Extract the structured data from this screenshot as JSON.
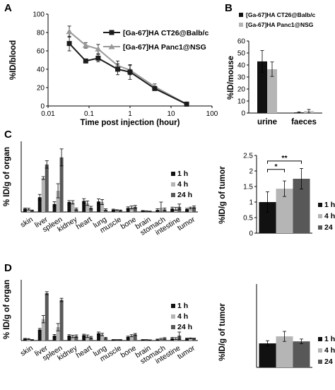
{
  "colors": {
    "black": "#111111",
    "light_gray": "#b5b5b5",
    "dark_gray": "#585858",
    "line_black": "#1c1c1c",
    "line_gray": "#999999"
  },
  "chart_data": [
    {
      "panel": "A",
      "type": "line",
      "xlabel": "Time post injection (hour)",
      "ylabel": "%ID/blood",
      "xscale": "log",
      "xlim": [
        0.01,
        100
      ],
      "ylim": [
        0,
        100
      ],
      "xticks": [
        "0.01",
        "0.1",
        "1",
        "10",
        "100"
      ],
      "yticks": [
        "0",
        "20",
        "40",
        "60",
        "80",
        "100"
      ],
      "legend_position": "top-right",
      "series": [
        {
          "name": "[Ga-67]HA CT26@Balb/c",
          "points": [
            [
              0.033,
              68,
              8
            ],
            [
              0.083,
              49,
              2
            ],
            [
              0.167,
              52,
              4
            ],
            [
              0.5,
              40,
              6
            ],
            [
              1,
              37,
              8
            ],
            [
              4,
              19,
              2
            ],
            [
              24,
              2,
              1
            ]
          ]
        },
        {
          "name": "[Ga-67]HA Panc1@NSG",
          "points": [
            [
              0.033,
              81,
              6
            ],
            [
              0.083,
              66,
              3
            ],
            [
              0.167,
              62,
              5
            ],
            [
              0.5,
              44,
              5
            ],
            [
              1,
              39,
              5
            ],
            [
              4,
              21,
              3
            ],
            [
              24,
              2,
              1
            ]
          ]
        }
      ]
    },
    {
      "panel": "B",
      "type": "bar",
      "ylabel": "%ID/mouse",
      "ylim": [
        0,
        60
      ],
      "yticks": [
        "0",
        "10",
        "20",
        "30",
        "40",
        "50",
        "60"
      ],
      "categories": [
        "urine",
        "faeces"
      ],
      "legend_position": "top",
      "series": [
        {
          "name": "[Ga-67]HA CT26@Balb/c",
          "values": [
            43,
            0.5
          ],
          "errors": [
            9,
            0.5
          ]
        },
        {
          "name": "[Ga-67]HA Panc1@NSG",
          "values": [
            36.5,
            1.5
          ],
          "errors": [
            6,
            1.5
          ]
        }
      ]
    },
    {
      "panel": "C",
      "type": "bar",
      "ylabel": "% ID/g of organ",
      "ylim": [
        0,
        25
      ],
      "categories": [
        "skin",
        "liver",
        "spleen",
        "kidney",
        "heart",
        "lung",
        "muscle",
        "bone",
        "brain",
        "stomach",
        "intestine",
        "tumor"
      ],
      "legend_position": "right",
      "series": [
        {
          "name": "1 h",
          "values": [
            1.1,
            5.2,
            2.8,
            3.5,
            3.9,
            3.7,
            0.8,
            1.4,
            0.4,
            0.7,
            1.2,
            1.0
          ],
          "errors": [
            0.3,
            1.0,
            0.8,
            0.5,
            0.8,
            0.9,
            0.2,
            0.4,
            0.1,
            0.4,
            0.5,
            0.3
          ]
        },
        {
          "name": "4 h",
          "values": [
            1.0,
            12.0,
            7.5,
            3.4,
            3.1,
            3.5,
            0.6,
            1.6,
            0.3,
            1.5,
            1.1,
            1.4
          ],
          "errors": [
            0.3,
            0.5,
            2.5,
            0.6,
            0.8,
            0.9,
            0.2,
            0.5,
            0.1,
            2.0,
            0.5,
            0.3
          ]
        },
        {
          "name": "24 h",
          "values": [
            0.5,
            16.8,
            19.3,
            1.0,
            1.5,
            0.8,
            0.5,
            1.8,
            0.2,
            0.9,
            1.8,
            1.7
          ],
          "errors": [
            0.2,
            1.3,
            3.0,
            0.4,
            0.5,
            0.3,
            0.2,
            0.5,
            0.1,
            0.5,
            1.0,
            0.4
          ]
        }
      ]
    },
    {
      "panel": "C",
      "type": "bar",
      "ylabel": "%ID/g of tumor",
      "ylim": [
        0,
        2.5
      ],
      "yticks": [
        "0",
        "0.5",
        "1",
        "1.5",
        "2",
        "2.5"
      ],
      "legend_position": "right",
      "series": [
        {
          "name": "1 h",
          "values": [
            1.0
          ],
          "errors": [
            0.33
          ]
        },
        {
          "name": "4 h",
          "values": [
            1.43
          ],
          "errors": [
            0.25
          ]
        },
        {
          "name": "24 h",
          "values": [
            1.75
          ],
          "errors": [
            0.33
          ]
        }
      ],
      "annotations": [
        "*",
        "**"
      ]
    },
    {
      "panel": "D",
      "type": "bar",
      "ylabel": "% ID/g of organ",
      "ylim": [
        0,
        25
      ],
      "categories": [
        "skin",
        "liver",
        "spleen",
        "kidney",
        "heart",
        "lung",
        "muscle",
        "bone",
        "brain",
        "stomach",
        "intestine",
        "tumor"
      ],
      "legend_position": "right",
      "series": [
        {
          "name": "1 h",
          "values": [
            0.7,
            4.5,
            2.0,
            2.0,
            2.2,
            3.0,
            0.3,
            1.5,
            0.3,
            0.4,
            0.9,
            0.8
          ],
          "errors": [
            0.2,
            0.5,
            0.5,
            0.4,
            0.4,
            0.5,
            0.1,
            0.3,
            0.1,
            0.2,
            0.4,
            0.2
          ]
        },
        {
          "name": "4 h",
          "values": [
            0.6,
            8.8,
            5.5,
            1.7,
            1.8,
            2.5,
            0.3,
            2.0,
            0.3,
            0.6,
            0.8,
            0.9
          ],
          "errors": [
            0.2,
            1.5,
            1.5,
            0.5,
            0.5,
            0.5,
            0.1,
            0.4,
            0.1,
            0.3,
            0.4,
            0.2
          ]
        },
        {
          "name": "24 h",
          "values": [
            0.3,
            19.5,
            16.7,
            1.8,
            1.3,
            1.0,
            0.3,
            2.5,
            0.2,
            0.9,
            2.0,
            0.8
          ],
          "errors": [
            0.1,
            0.6,
            0.7,
            0.5,
            0.4,
            0.3,
            0.1,
            0.4,
            0.1,
            0.3,
            1.5,
            0.2
          ]
        }
      ]
    },
    {
      "panel": "D",
      "type": "bar",
      "ylabel": "%ID/g of tumor",
      "ylim": [
        0,
        2.5
      ],
      "legend_position": "right",
      "series": [
        {
          "name": "1 h",
          "values": [
            0.72
          ],
          "errors": [
            0.08
          ]
        },
        {
          "name": "4 h",
          "values": [
            0.93
          ],
          "errors": [
            0.15
          ]
        },
        {
          "name": "24 h",
          "values": [
            0.78
          ],
          "errors": [
            0.07
          ]
        }
      ]
    }
  ]
}
